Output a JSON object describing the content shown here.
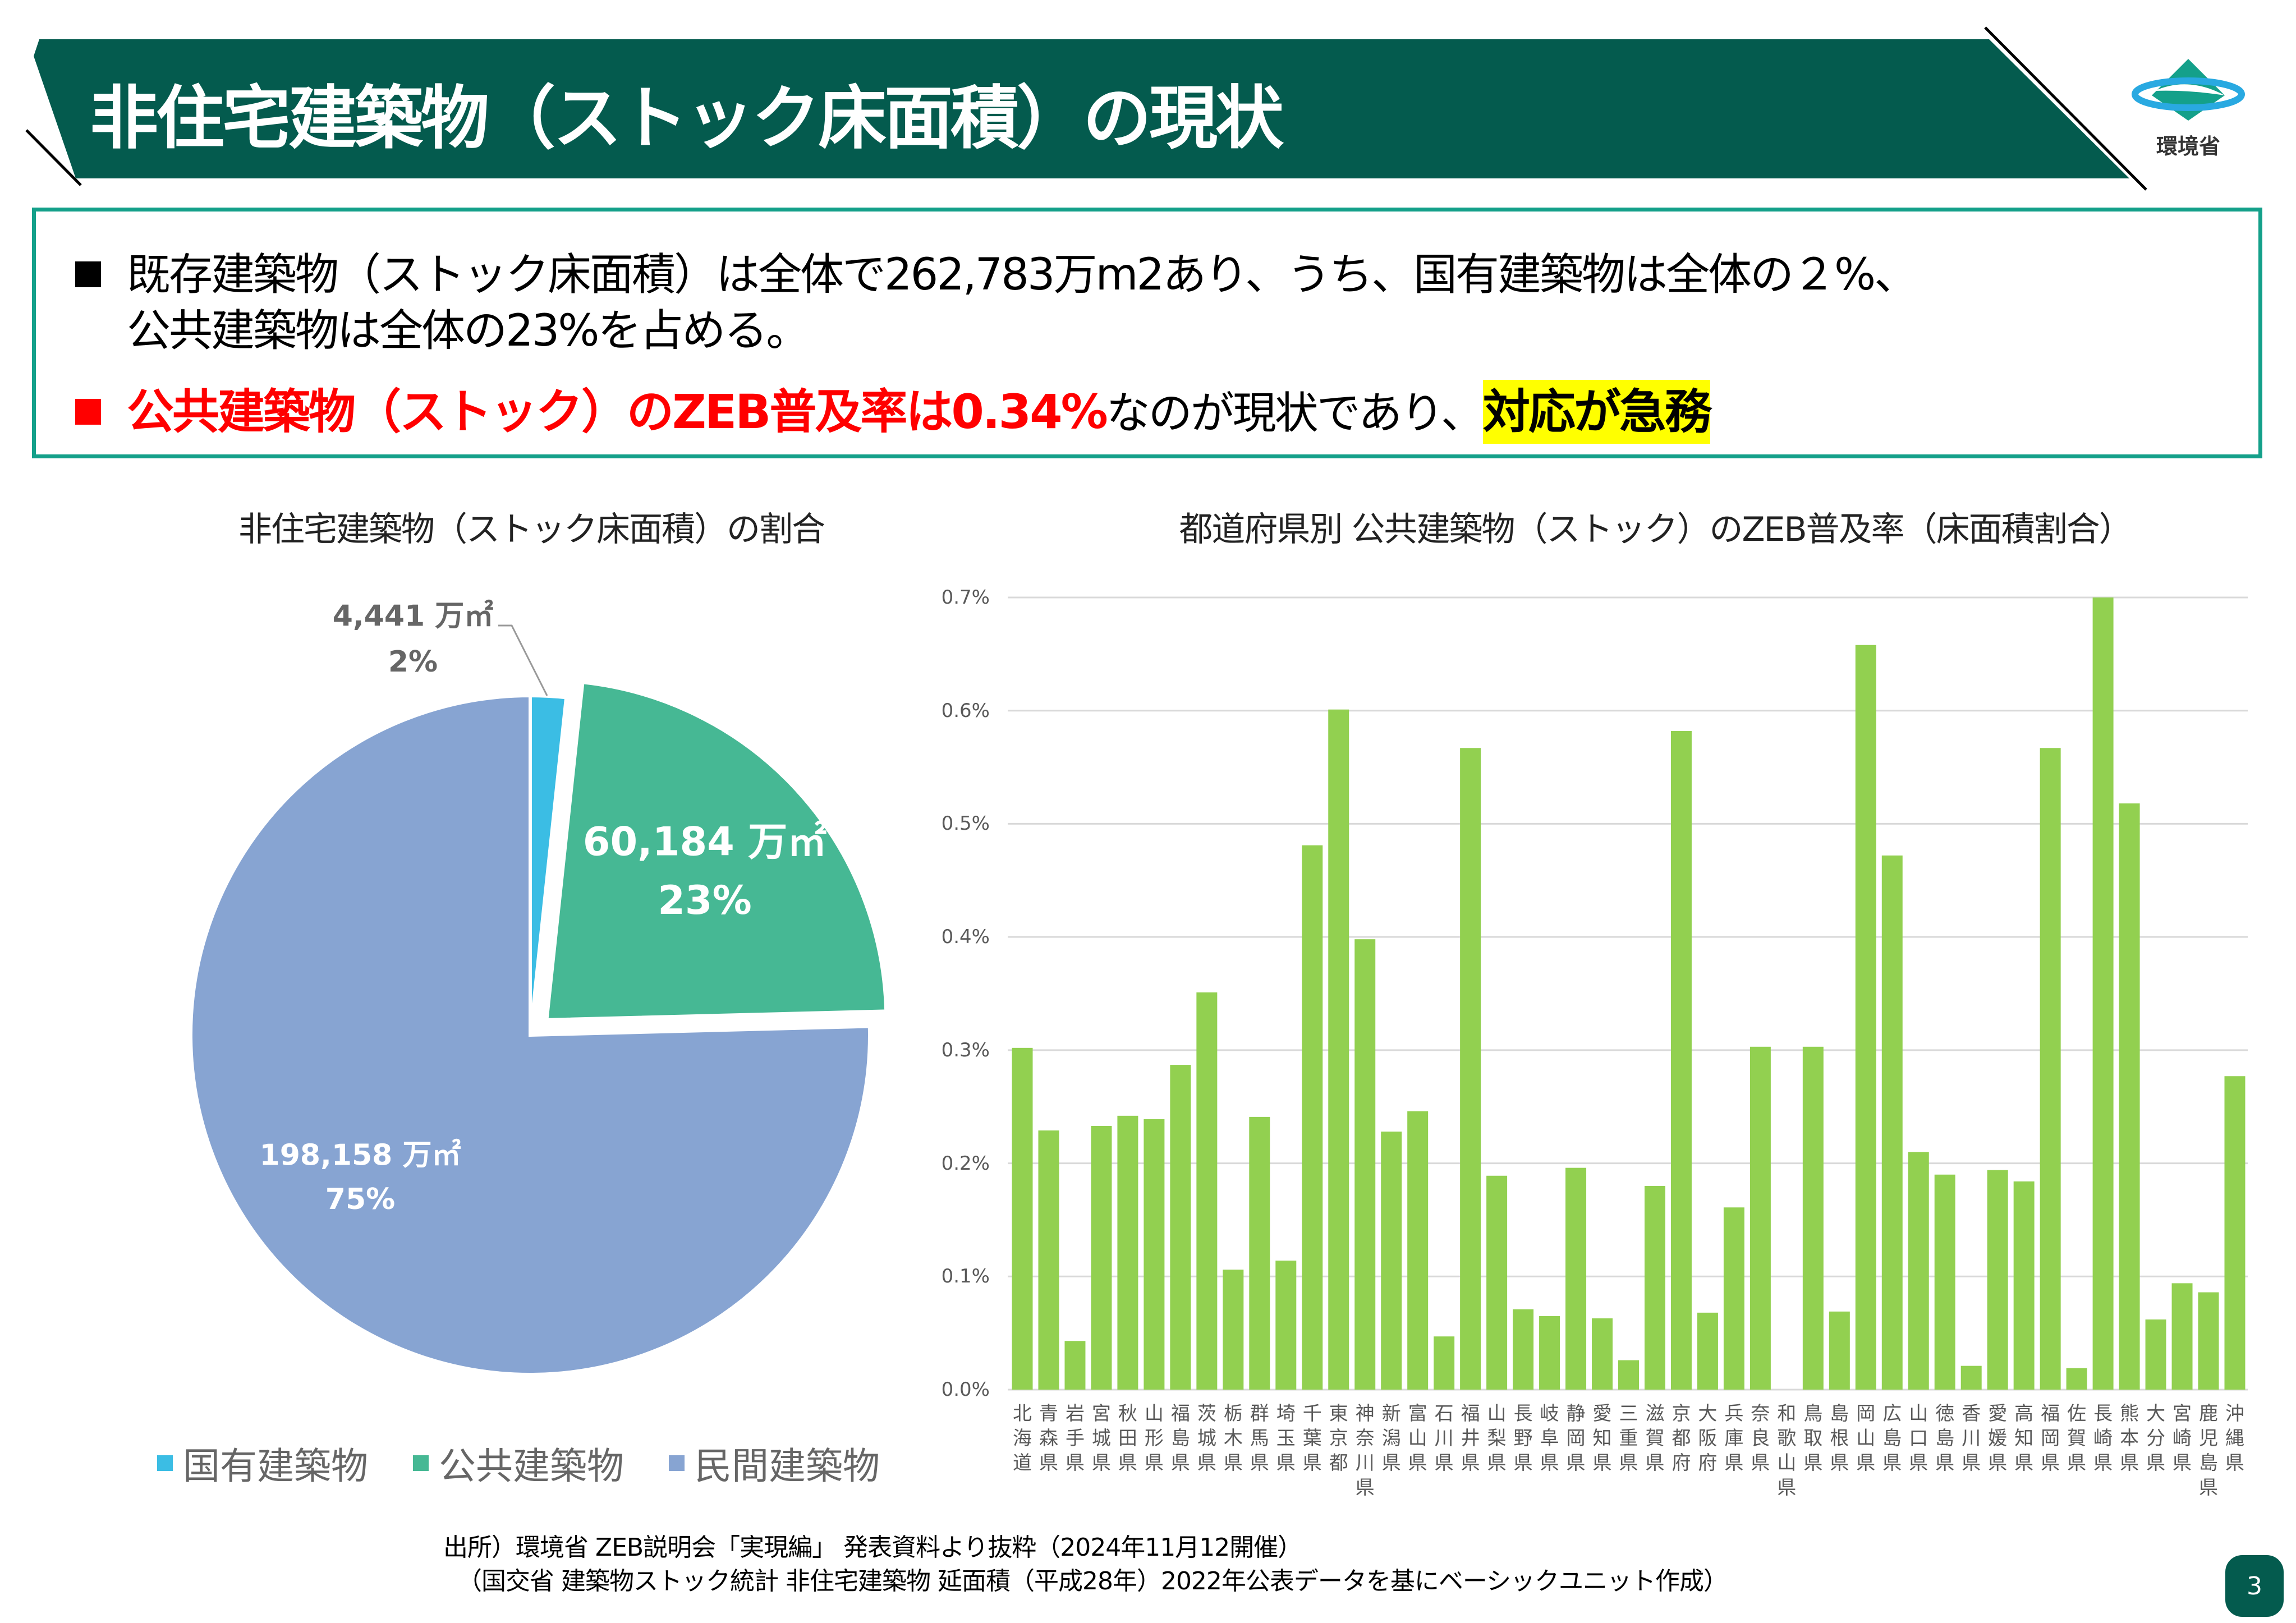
{
  "header": {
    "title": "非住宅建築物（ストック床面積）の現状",
    "logo_text": "環境省",
    "colors": {
      "banner": "#045b4e",
      "logo_green": "#14a08a",
      "logo_blue": "#29a9e1"
    }
  },
  "summary": {
    "line1": "既存建築物（ストック床面積）は全体で262,783万m2あり、うち、国有建築物は全体の２%、",
    "line2": "公共建築物は全体の23%を占める。",
    "line3_red": "公共建築物（ストック）のZEB普及率は0.34%",
    "line3_plain": "なのが現状であり、",
    "line3_highlight": "対応が急務",
    "colors": {
      "border": "#14a08a",
      "red": "#ff0000",
      "highlight": "#ffff00"
    }
  },
  "chart_data": [
    {
      "type": "pie",
      "title": "非住宅建築物（ストック床面積）の割合",
      "unit": "万㎡",
      "slices": [
        {
          "name": "国有建築物",
          "value": 4441,
          "value_label": "4,441 万㎡",
          "percent_label": "2%",
          "color": "#3bbde4"
        },
        {
          "name": "公共建築物",
          "value": 60184,
          "value_label": "60,184 万㎡",
          "percent_label": "23%",
          "color": "#46b894"
        },
        {
          "name": "民間建築物",
          "value": 198158,
          "value_label": "198,158 万㎡",
          "percent_label": "75%",
          "color": "#87a4d2"
        }
      ],
      "legend_position": "bottom"
    },
    {
      "type": "bar",
      "title": "都道府県別 公共建築物（ストック）のZEB普及率（床面積割合）",
      "ylim": [
        0,
        0.7
      ],
      "yticks": [
        "0.0%",
        "0.1%",
        "0.2%",
        "0.3%",
        "0.4%",
        "0.5%",
        "0.6%",
        "0.7%"
      ],
      "grid": true,
      "color": "#92d050",
      "categories": [
        "北海道",
        "青森県",
        "岩手県",
        "宮城県",
        "秋田県",
        "山形県",
        "福島県",
        "茨城県",
        "栃木県",
        "群馬県",
        "埼玉県",
        "千葉県",
        "東京都",
        "神奈川県",
        "新潟県",
        "富山県",
        "石川県",
        "福井県",
        "山梨県",
        "長野県",
        "岐阜県",
        "静岡県",
        "愛知県",
        "三重県",
        "滋賀県",
        "京都府",
        "大阪府",
        "兵庫県",
        "奈良県",
        "和歌山県",
        "鳥取県",
        "島根県",
        "岡山県",
        "広島県",
        "山口県",
        "徳島県",
        "香川県",
        "愛媛県",
        "高知県",
        "福岡県",
        "佐賀県",
        "長崎県",
        "熊本県",
        "大分県",
        "宮崎県",
        "鹿児島県",
        "沖縄県"
      ],
      "values": [
        0.302,
        0.229,
        0.043,
        0.233,
        0.242,
        0.239,
        0.287,
        0.351,
        0.106,
        0.241,
        0.114,
        0.481,
        0.601,
        0.398,
        0.228,
        0.246,
        0.047,
        0.567,
        0.189,
        0.071,
        0.065,
        0.196,
        0.063,
        0.026,
        0.18,
        0.582,
        0.068,
        0.161,
        0.303,
        0.0,
        0.303,
        0.069,
        0.658,
        0.472,
        0.21,
        0.19,
        0.021,
        0.194,
        0.184,
        0.567,
        0.019,
        0.7,
        0.518,
        0.062,
        0.094,
        0.086,
        0.277
      ]
    }
  ],
  "footer": {
    "source1": "出所）環境省 ZEB説明会「実現編」 発表資料より抜粋（2024年11月12開催）",
    "source2": "（国交省 建築物ストック統計 非住宅建築物 延面積（平成28年）2022年公表データを基にベーシックユニット作成）",
    "page_number": "3"
  }
}
